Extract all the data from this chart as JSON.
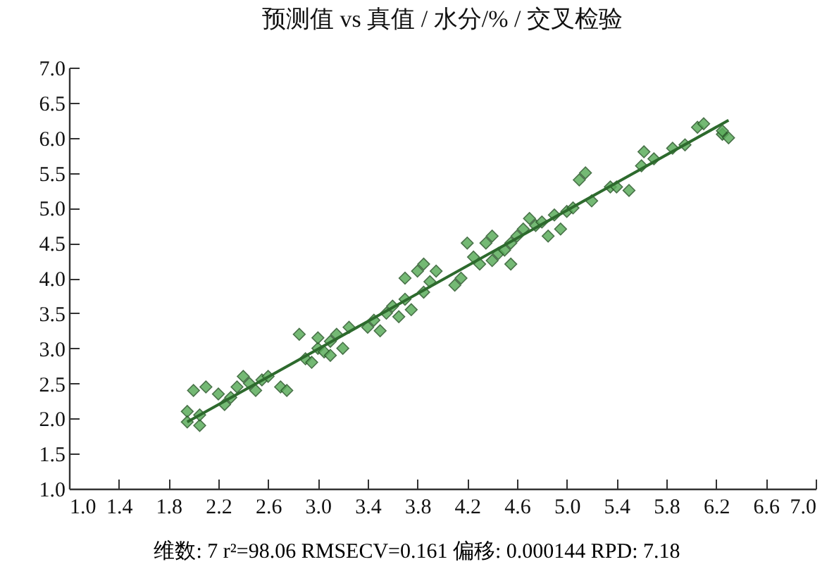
{
  "chart_data": {
    "type": "scatter",
    "title": "预测值 vs 真值  /  水分/%  /  交叉检验",
    "xlim": [
      1.0,
      7.0
    ],
    "xticks": [
      {
        "value": 1.0,
        "label": "1.0"
      },
      {
        "value": 1.4,
        "label": "1.4"
      },
      {
        "value": 1.8,
        "label": "1.8"
      },
      {
        "value": 2.2,
        "label": "2.2"
      },
      {
        "value": 2.6,
        "label": "2.6"
      },
      {
        "value": 3.0,
        "label": "3.0"
      },
      {
        "value": 3.4,
        "label": "3.4"
      },
      {
        "value": 3.8,
        "label": "3.8"
      },
      {
        "value": 4.2,
        "label": "4.2"
      },
      {
        "value": 4.6,
        "label": "4.6"
      },
      {
        "value": 5.0,
        "label": "5.0"
      },
      {
        "value": 5.4,
        "label": "5.4"
      },
      {
        "value": 5.8,
        "label": "5.8"
      },
      {
        "value": 6.2,
        "label": "6.2"
      },
      {
        "value": 6.6,
        "label": "6.6"
      },
      {
        "value": 7.0,
        "label": "7.0"
      }
    ],
    "ylim": [
      1.0,
      7.0
    ],
    "yticks": [
      {
        "value": 1.0,
        "label": "1.0"
      },
      {
        "value": 1.5,
        "label": "1.5"
      },
      {
        "value": 2.0,
        "label": "2.0"
      },
      {
        "value": 2.5,
        "label": "2.5"
      },
      {
        "value": 3.0,
        "label": "3.0"
      },
      {
        "value": 3.5,
        "label": "3.5"
      },
      {
        "value": 4.0,
        "label": "4.0"
      },
      {
        "value": 4.5,
        "label": "4.5"
      },
      {
        "value": 5.0,
        "label": "5.0"
      },
      {
        "value": 5.5,
        "label": "5.5"
      },
      {
        "value": 6.0,
        "label": "6.0"
      },
      {
        "value": 6.5,
        "label": "6.5"
      },
      {
        "value": 7.0,
        "label": "7.0"
      }
    ],
    "grid": false,
    "marker": "diamond",
    "annotations": [
      "维数: 7    r²=98.06   RMSECV=0.161    偏移: 0.000144    RPD: 7.18"
    ],
    "series": [
      {
        "type": "scatter",
        "color": "#5cad5c",
        "x": [
          1.95,
          1.95,
          2.0,
          2.05,
          2.05,
          2.1,
          2.2,
          2.25,
          2.3,
          2.35,
          2.4,
          2.45,
          2.5,
          2.55,
          2.6,
          2.7,
          2.75,
          2.85,
          2.9,
          2.95,
          3.0,
          3.05,
          3.1,
          3.15,
          3.2,
          3.25,
          3.0,
          3.1,
          3.4,
          3.45,
          3.5,
          3.55,
          3.6,
          3.65,
          3.7,
          3.75,
          3.7,
          3.8,
          3.85,
          3.9,
          3.95,
          3.85,
          4.1,
          4.15,
          4.2,
          4.25,
          4.3,
          4.35,
          4.4,
          4.45,
          4.5,
          4.55,
          4.6,
          4.55,
          4.4,
          4.65,
          4.7,
          4.75,
          4.8,
          4.85,
          4.9,
          4.95,
          5.0,
          5.05,
          5.1,
          5.15,
          5.2,
          5.35,
          5.4,
          5.5,
          5.6,
          5.62,
          5.7,
          5.85,
          5.95,
          6.05,
          6.1,
          6.25,
          6.3,
          6.25
        ],
        "values": [
          2.1,
          1.95,
          2.4,
          1.9,
          2.05,
          2.45,
          2.35,
          2.2,
          2.3,
          2.45,
          2.6,
          2.5,
          2.4,
          2.55,
          2.6,
          2.45,
          2.4,
          3.2,
          2.85,
          2.8,
          3.0,
          2.95,
          3.1,
          3.2,
          3.0,
          3.3,
          3.15,
          2.9,
          3.3,
          3.4,
          3.25,
          3.5,
          3.6,
          3.45,
          3.7,
          3.55,
          4.0,
          4.1,
          3.8,
          3.95,
          4.1,
          4.2,
          3.9,
          4.0,
          4.5,
          4.3,
          4.2,
          4.5,
          4.6,
          4.35,
          4.4,
          4.5,
          4.6,
          4.2,
          4.25,
          4.7,
          4.85,
          4.75,
          4.8,
          4.6,
          4.9,
          4.7,
          4.95,
          5.0,
          5.4,
          5.5,
          5.1,
          5.3,
          5.3,
          5.25,
          5.6,
          5.8,
          5.7,
          5.85,
          5.9,
          6.15,
          6.2,
          6.05,
          6.0,
          6.1
        ]
      },
      {
        "type": "line",
        "marker": "none",
        "color": "#2d6a2d",
        "x": [
          1.95,
          6.3
        ],
        "values": [
          1.95,
          6.25
        ]
      }
    ]
  }
}
